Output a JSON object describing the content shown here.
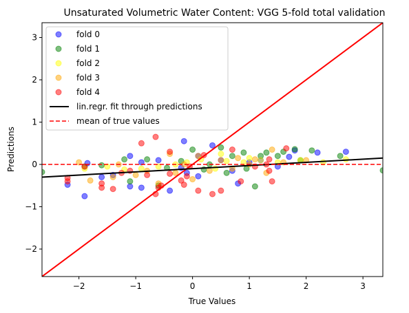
{
  "chart_data": {
    "type": "scatter",
    "title": "Unsaturated Volumetric Water Content: VGG 5-fold total validation",
    "xlabel": "True Values",
    "ylabel": "Predictions",
    "xlim": [
      -2.65,
      3.35
    ],
    "ylim": [
      -2.65,
      3.35
    ],
    "xticks": [
      -2,
      -1,
      0,
      1,
      2,
      3
    ],
    "yticks": [
      -2,
      -1,
      0,
      1,
      2,
      3
    ],
    "xtick_labels": [
      "−2",
      "−1",
      "0",
      "1",
      "2",
      "3"
    ],
    "ytick_labels": [
      "−2",
      "−1",
      "0",
      "1",
      "2",
      "3"
    ],
    "legend_position": "top-left",
    "series": [
      {
        "name": "fold 0",
        "color": "#0000ff",
        "points": [
          [
            -2.2,
            -0.48
          ],
          [
            -1.9,
            -0.75
          ],
          [
            -1.85,
            0.03
          ],
          [
            -1.6,
            -0.3
          ],
          [
            -1.4,
            -0.25
          ],
          [
            -1.1,
            0.2
          ],
          [
            -1.1,
            -0.52
          ],
          [
            -0.9,
            0.05
          ],
          [
            -0.9,
            -0.55
          ],
          [
            -0.6,
            0.1
          ],
          [
            -0.4,
            -0.62
          ],
          [
            -0.2,
            -0.08
          ],
          [
            -0.15,
            0.55
          ],
          [
            -0.1,
            -0.2
          ],
          [
            0.1,
            -0.28
          ],
          [
            0.1,
            0.2
          ],
          [
            0.35,
            0.45
          ],
          [
            0.5,
            0.1
          ],
          [
            0.7,
            -0.15
          ],
          [
            0.8,
            -0.45
          ],
          [
            1.0,
            0.05
          ],
          [
            1.2,
            0.1
          ],
          [
            1.5,
            -0.05
          ],
          [
            1.7,
            0.18
          ],
          [
            1.8,
            0.33
          ],
          [
            2.2,
            0.28
          ],
          [
            2.7,
            0.3
          ]
        ]
      },
      {
        "name": "fold 1",
        "color": "#008000",
        "points": [
          [
            -2.65,
            -0.18
          ],
          [
            -1.9,
            -0.05
          ],
          [
            -1.6,
            -0.02
          ],
          [
            -1.2,
            0.12
          ],
          [
            -1.1,
            -0.4
          ],
          [
            -0.8,
            0.12
          ],
          [
            -0.6,
            -0.5
          ],
          [
            -0.45,
            -0.08
          ],
          [
            -0.2,
            0.08
          ],
          [
            0.0,
            0.35
          ],
          [
            0.2,
            -0.12
          ],
          [
            0.3,
            0.0
          ],
          [
            0.5,
            0.4
          ],
          [
            0.6,
            -0.2
          ],
          [
            0.7,
            0.2
          ],
          [
            0.9,
            0.28
          ],
          [
            0.95,
            -0.1
          ],
          [
            1.1,
            -0.52
          ],
          [
            1.2,
            0.2
          ],
          [
            1.3,
            0.28
          ],
          [
            1.5,
            0.2
          ],
          [
            1.6,
            0.3
          ],
          [
            1.8,
            0.36
          ],
          [
            1.9,
            0.1
          ],
          [
            2.1,
            0.33
          ],
          [
            2.6,
            0.2
          ],
          [
            3.35,
            -0.14
          ]
        ]
      },
      {
        "name": "fold 2",
        "color": "#ffff00",
        "points": [
          [
            -1.9,
            -0.1
          ],
          [
            -1.5,
            -0.05
          ],
          [
            -1.2,
            -0.12
          ],
          [
            -0.9,
            -0.1
          ],
          [
            -0.6,
            -0.05
          ],
          [
            -0.3,
            0.0
          ],
          [
            -0.1,
            0.05
          ],
          [
            0.15,
            0.12
          ],
          [
            0.4,
            -0.1
          ],
          [
            0.6,
            0.08
          ],
          [
            0.9,
            0.05
          ],
          [
            1.2,
            0.1
          ],
          [
            1.5,
            0.05
          ],
          [
            1.9,
            0.1
          ],
          [
            2.3,
            0.05
          ],
          [
            2.7,
            0.12
          ],
          [
            0.5,
            0.25
          ],
          [
            1.0,
            0.15
          ]
        ]
      },
      {
        "name": "fold 3",
        "color": "#ffa500",
        "points": [
          [
            -2.0,
            0.05
          ],
          [
            -1.8,
            -0.38
          ],
          [
            -1.4,
            -0.3
          ],
          [
            -1.3,
            0.0
          ],
          [
            -1.0,
            -0.25
          ],
          [
            -0.8,
            -0.15
          ],
          [
            -0.6,
            -0.45
          ],
          [
            -0.4,
            0.25
          ],
          [
            -0.3,
            -0.2
          ],
          [
            -0.15,
            0.0
          ],
          [
            0.0,
            -0.35
          ],
          [
            0.1,
            0.2
          ],
          [
            0.3,
            -0.15
          ],
          [
            0.5,
            0.1
          ],
          [
            0.7,
            -0.1
          ],
          [
            1.0,
            0.0
          ],
          [
            1.1,
            0.12
          ],
          [
            1.4,
            0.35
          ],
          [
            1.6,
            0.05
          ],
          [
            2.0,
            0.1
          ],
          [
            1.3,
            -0.2
          ],
          [
            0.8,
            0.15
          ]
        ]
      },
      {
        "name": "fold 4",
        "color": "#ff0000",
        "points": [
          [
            -2.2,
            -0.4
          ],
          [
            -2.2,
            -0.32
          ],
          [
            -1.9,
            -0.05
          ],
          [
            -1.6,
            -0.55
          ],
          [
            -1.6,
            -0.45
          ],
          [
            -1.4,
            -0.58
          ],
          [
            -1.25,
            -0.2
          ],
          [
            -1.1,
            -0.15
          ],
          [
            -0.9,
            0.5
          ],
          [
            -0.8,
            -0.25
          ],
          [
            -0.65,
            0.65
          ],
          [
            -0.65,
            -0.7
          ],
          [
            -0.6,
            -0.55
          ],
          [
            -0.55,
            -0.5
          ],
          [
            -0.4,
            -0.22
          ],
          [
            -0.4,
            0.3
          ],
          [
            -0.2,
            -0.38
          ],
          [
            -0.15,
            -0.48
          ],
          [
            -0.1,
            -0.28
          ],
          [
            -0.05,
            -0.05
          ],
          [
            0.1,
            -0.62
          ],
          [
            0.2,
            0.22
          ],
          [
            0.35,
            -0.7
          ],
          [
            0.5,
            -0.62
          ],
          [
            0.7,
            0.35
          ],
          [
            0.85,
            -0.4
          ],
          [
            1.1,
            -0.05
          ],
          [
            1.3,
            0.0
          ],
          [
            1.35,
            -0.15
          ],
          [
            1.35,
            0.12
          ],
          [
            1.4,
            -0.4
          ],
          [
            1.65,
            0.38
          ]
        ]
      }
    ],
    "fit_line": {
      "name": "lin.regr. fit through predictions",
      "color": "#000000",
      "x": [
        -2.65,
        3.35
      ],
      "y": [
        -0.3,
        0.15
      ]
    },
    "mean_line": {
      "name": "mean of true values",
      "color": "#ff0000",
      "y": 0.0
    },
    "identity_line": {
      "color": "#ff0000",
      "x": [
        -2.65,
        3.35
      ],
      "y": [
        -2.65,
        3.35
      ]
    }
  }
}
